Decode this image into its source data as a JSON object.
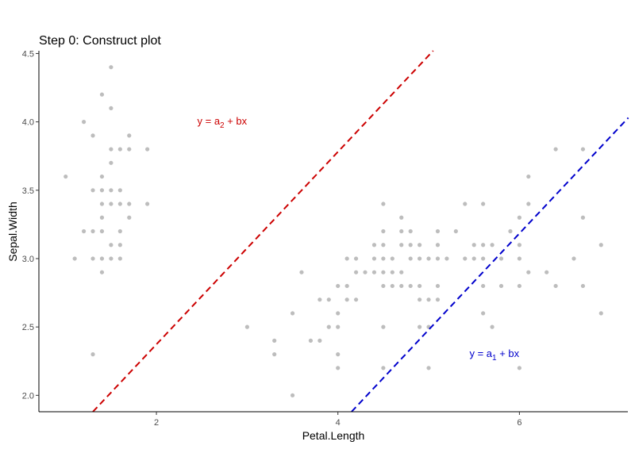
{
  "chart_data": {
    "type": "scatter",
    "title": "Step 0: Construct plot",
    "xlabel": "Petal.Length",
    "ylabel": "Sepal.Width",
    "xlim": [
      0.705,
      7.195
    ],
    "ylim": [
      1.88,
      4.52
    ],
    "xticks": [
      2,
      4,
      6
    ],
    "yticks": [
      2.0,
      2.5,
      3.0,
      3.5,
      4.0,
      4.5
    ],
    "grid": false,
    "legend": "none",
    "point_color": "#bdbdbd",
    "points": [
      [
        1.0,
        3.6
      ],
      [
        1.1,
        3.0
      ],
      [
        1.2,
        3.2
      ],
      [
        1.2,
        4.0
      ],
      [
        1.3,
        2.3
      ],
      [
        1.3,
        3.0
      ],
      [
        1.3,
        3.2
      ],
      [
        1.3,
        3.5
      ],
      [
        1.3,
        3.9
      ],
      [
        1.4,
        2.9
      ],
      [
        1.4,
        3.0
      ],
      [
        1.4,
        3.2
      ],
      [
        1.4,
        3.3
      ],
      [
        1.4,
        3.4
      ],
      [
        1.4,
        3.5
      ],
      [
        1.4,
        3.6
      ],
      [
        1.4,
        4.2
      ],
      [
        1.5,
        3.0
      ],
      [
        1.5,
        3.1
      ],
      [
        1.5,
        3.4
      ],
      [
        1.5,
        3.5
      ],
      [
        1.5,
        3.7
      ],
      [
        1.5,
        3.8
      ],
      [
        1.5,
        4.1
      ],
      [
        1.5,
        4.4
      ],
      [
        1.6,
        3.0
      ],
      [
        1.6,
        3.1
      ],
      [
        1.6,
        3.2
      ],
      [
        1.6,
        3.4
      ],
      [
        1.6,
        3.5
      ],
      [
        1.6,
        3.8
      ],
      [
        1.7,
        3.3
      ],
      [
        1.7,
        3.4
      ],
      [
        1.7,
        3.8
      ],
      [
        1.7,
        3.9
      ],
      [
        1.9,
        3.4
      ],
      [
        1.9,
        3.8
      ],
      [
        3.0,
        2.5
      ],
      [
        3.3,
        2.3
      ],
      [
        3.3,
        2.4
      ],
      [
        3.5,
        2.0
      ],
      [
        3.5,
        2.6
      ],
      [
        3.6,
        2.9
      ],
      [
        3.7,
        2.4
      ],
      [
        3.8,
        2.4
      ],
      [
        3.8,
        2.7
      ],
      [
        3.9,
        2.5
      ],
      [
        3.9,
        2.7
      ],
      [
        4.0,
        2.2
      ],
      [
        4.0,
        2.3
      ],
      [
        4.0,
        2.5
      ],
      [
        4.0,
        2.6
      ],
      [
        4.0,
        2.8
      ],
      [
        4.1,
        2.7
      ],
      [
        4.1,
        2.8
      ],
      [
        4.1,
        3.0
      ],
      [
        4.2,
        2.7
      ],
      [
        4.2,
        2.9
      ],
      [
        4.2,
        3.0
      ],
      [
        4.3,
        2.9
      ],
      [
        4.4,
        2.9
      ],
      [
        4.4,
        3.0
      ],
      [
        4.4,
        3.1
      ],
      [
        4.5,
        2.2
      ],
      [
        4.5,
        2.5
      ],
      [
        4.5,
        2.8
      ],
      [
        4.5,
        2.9
      ],
      [
        4.5,
        3.0
      ],
      [
        4.5,
        3.1
      ],
      [
        4.5,
        3.2
      ],
      [
        4.5,
        3.4
      ],
      [
        4.6,
        2.8
      ],
      [
        4.6,
        2.9
      ],
      [
        4.6,
        3.0
      ],
      [
        4.7,
        2.8
      ],
      [
        4.7,
        2.9
      ],
      [
        4.7,
        3.1
      ],
      [
        4.7,
        3.2
      ],
      [
        4.7,
        3.3
      ],
      [
        4.8,
        2.8
      ],
      [
        4.8,
        3.0
      ],
      [
        4.8,
        3.1
      ],
      [
        4.8,
        3.2
      ],
      [
        4.9,
        2.5
      ],
      [
        4.9,
        2.7
      ],
      [
        4.9,
        2.8
      ],
      [
        4.9,
        3.0
      ],
      [
        4.9,
        3.1
      ],
      [
        5.0,
        2.2
      ],
      [
        5.0,
        2.5
      ],
      [
        5.0,
        3.0
      ],
      [
        5.0,
        2.7
      ],
      [
        5.1,
        2.7
      ],
      [
        5.1,
        2.8
      ],
      [
        5.1,
        3.0
      ],
      [
        5.1,
        3.1
      ],
      [
        5.1,
        3.2
      ],
      [
        5.2,
        3.0
      ],
      [
        5.3,
        3.2
      ],
      [
        5.4,
        3.0
      ],
      [
        5.4,
        3.4
      ],
      [
        5.5,
        3.0
      ],
      [
        5.5,
        3.1
      ],
      [
        5.6,
        2.6
      ],
      [
        5.6,
        2.8
      ],
      [
        5.6,
        3.0
      ],
      [
        5.6,
        3.1
      ],
      [
        5.6,
        3.4
      ],
      [
        5.7,
        2.5
      ],
      [
        5.7,
        3.1
      ],
      [
        5.8,
        2.8
      ],
      [
        5.8,
        3.0
      ],
      [
        5.9,
        3.2
      ],
      [
        6.0,
        2.8
      ],
      [
        6.0,
        3.0
      ],
      [
        6.0,
        2.2
      ],
      [
        6.0,
        3.1
      ],
      [
        6.0,
        3.3
      ],
      [
        6.1,
        3.4
      ],
      [
        6.1,
        2.9
      ],
      [
        6.4,
        2.8
      ],
      [
        6.6,
        3.0
      ],
      [
        6.7,
        2.8
      ],
      [
        6.7,
        3.3
      ],
      [
        6.9,
        3.1
      ],
      [
        6.1,
        3.6
      ],
      [
        6.3,
        2.9
      ],
      [
        6.4,
        3.8
      ],
      [
        6.7,
        3.8
      ],
      [
        6.9,
        2.6
      ]
    ],
    "lines": [
      {
        "x": [
          1.3,
          5.05
        ],
        "y": [
          1.88,
          4.52
        ],
        "color": "#cc0000",
        "dash": "dashed"
      },
      {
        "x": [
          4.15,
          7.2
        ],
        "y": [
          1.88,
          4.03
        ],
        "color": "#0000cc",
        "dash": "dashed"
      }
    ],
    "annotations": [
      {
        "text": "y = a",
        "sub": "2",
        "rest": " + bx",
        "x": 2.45,
        "y": 3.98,
        "color": "#cc0000"
      },
      {
        "text": "y = a",
        "sub": "1",
        "rest": " + bx",
        "x": 5.45,
        "y": 2.28,
        "color": "#0000cc"
      }
    ]
  }
}
